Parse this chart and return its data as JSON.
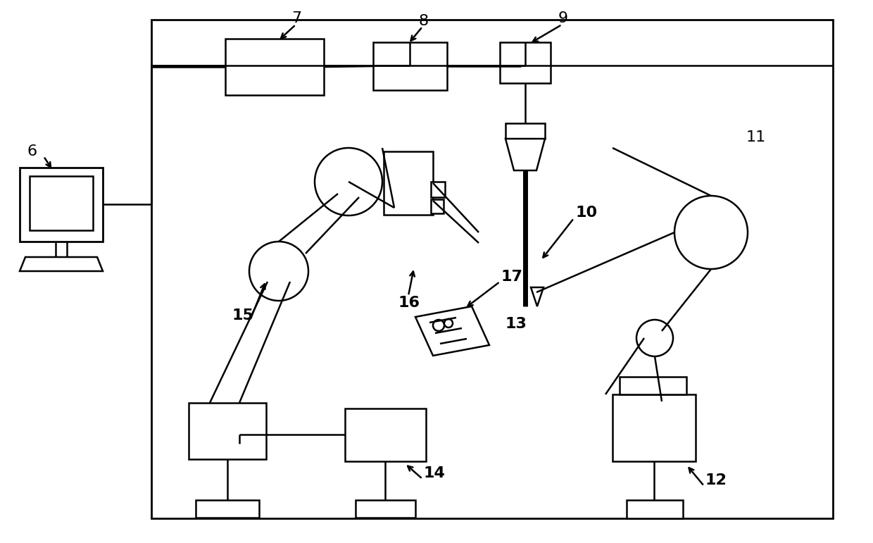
{
  "background": "#ffffff",
  "line_color": "#000000",
  "figsize": [
    12.4,
    7.71
  ],
  "dpi": 100
}
